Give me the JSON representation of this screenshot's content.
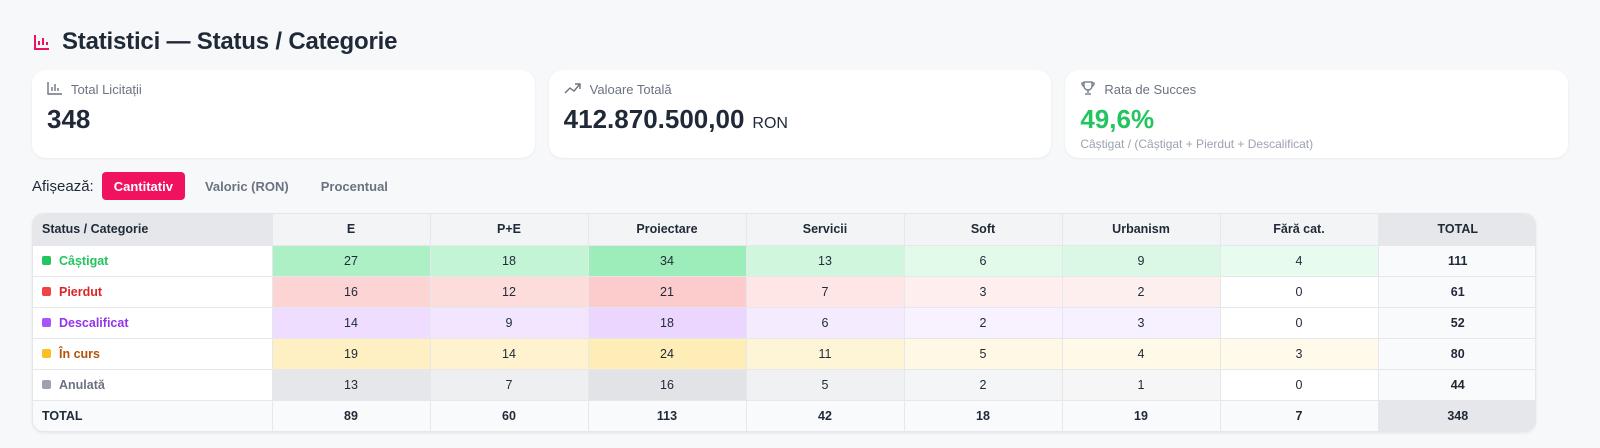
{
  "header": {
    "title": "Statistici — Status / Categorie",
    "icon": "bar-chart-icon",
    "accent": "#f0125f"
  },
  "cards": {
    "total": {
      "label": "Total Licitații",
      "value": "348",
      "icon": "bar-chart-icon"
    },
    "value": {
      "label": "Valoare Totală",
      "value": "412.870.500,00",
      "unit": "RON",
      "icon": "trending-up-icon"
    },
    "success": {
      "label": "Rata de Succes",
      "value": "49,6%",
      "sub": "Câștigat / (Câștigat + Pierdut + Descalificat)",
      "icon": "trophy-icon",
      "color": "#22c55e"
    }
  },
  "filters": {
    "label": "Afișează:",
    "tabs": [
      "Cantitativ",
      "Valoric (RON)",
      "Procentual"
    ],
    "active": "Cantitativ"
  },
  "table": {
    "corner": "Status / Categorie",
    "columns": [
      "E",
      "P+E",
      "Proiectare",
      "Servicii",
      "Soft",
      "Urbanism",
      "Fără cat.",
      "TOTAL"
    ],
    "rows": [
      {
        "status": "Câștigat",
        "color": "#22c55e",
        "text_color": "#22c55e",
        "values": [
          "27",
          "18",
          "34",
          "13",
          "6",
          "9",
          "4"
        ],
        "total": "111"
      },
      {
        "status": "Pierdut",
        "color": "#ef4444",
        "text_color": "#dc2626",
        "values": [
          "16",
          "12",
          "21",
          "7",
          "3",
          "2",
          "0"
        ],
        "total": "61"
      },
      {
        "status": "Descalificat",
        "color": "#a855f7",
        "text_color": "#9333ea",
        "values": [
          "14",
          "9",
          "18",
          "6",
          "2",
          "3",
          "0"
        ],
        "total": "52"
      },
      {
        "status": "În curs",
        "color": "#fbbf24",
        "text_color": "#b45309",
        "values": [
          "19",
          "14",
          "24",
          "11",
          "5",
          "4",
          "3"
        ],
        "total": "80"
      },
      {
        "status": "Anulată",
        "color": "#9ca3af",
        "text_color": "#6b7280",
        "values": [
          "13",
          "7",
          "16",
          "5",
          "2",
          "1",
          "0"
        ],
        "total": "44"
      }
    ],
    "totals": {
      "label": "TOTAL",
      "values": [
        "89",
        "60",
        "113",
        "42",
        "18",
        "19",
        "7"
      ],
      "grand": "348"
    },
    "heat_rgb": {
      "Câștigat": [
        74,
        222,
        128
      ],
      "Pierdut": [
        248,
        113,
        113
      ],
      "Descalificat": [
        192,
        132,
        252
      ],
      "În curs": [
        252,
        211,
        77
      ],
      "Anulată": [
        156,
        163,
        175
      ]
    }
  }
}
